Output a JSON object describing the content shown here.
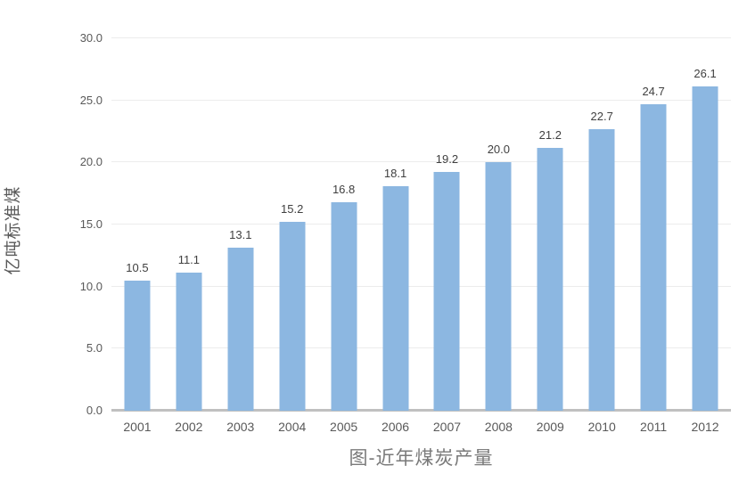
{
  "chart_data": {
    "type": "bar",
    "title": "图-近年煤炭产量",
    "xlabel": "",
    "ylabel": "亿吨标准煤",
    "categories": [
      "2001",
      "2002",
      "2003",
      "2004",
      "2005",
      "2006",
      "2007",
      "2008",
      "2009",
      "2010",
      "2011",
      "2012"
    ],
    "values": [
      10.5,
      11.1,
      13.1,
      15.2,
      16.8,
      18.1,
      19.2,
      20.0,
      21.2,
      22.7,
      24.7,
      26.1
    ],
    "value_labels": [
      "10.5",
      "11.1",
      "13.1",
      "15.2",
      "16.8",
      "18.1",
      "19.2",
      "20.0",
      "21.2",
      "22.7",
      "24.7",
      "26.1"
    ],
    "ylim": [
      0,
      30
    ],
    "yticks": [
      0,
      5,
      10,
      15,
      20,
      25,
      30
    ],
    "ytick_labels": [
      "0.0",
      "5.0",
      "10.0",
      "15.0",
      "20.0",
      "25.0",
      "30.0"
    ],
    "grid": true,
    "legend_position": "none",
    "colors": {
      "bar": "#8cb7e1",
      "gridline": "#ececec",
      "axis_line": "#c0c0c0",
      "tick_text": "#595959",
      "value_text": "#404040",
      "title_text": "#7a7a7a"
    }
  }
}
